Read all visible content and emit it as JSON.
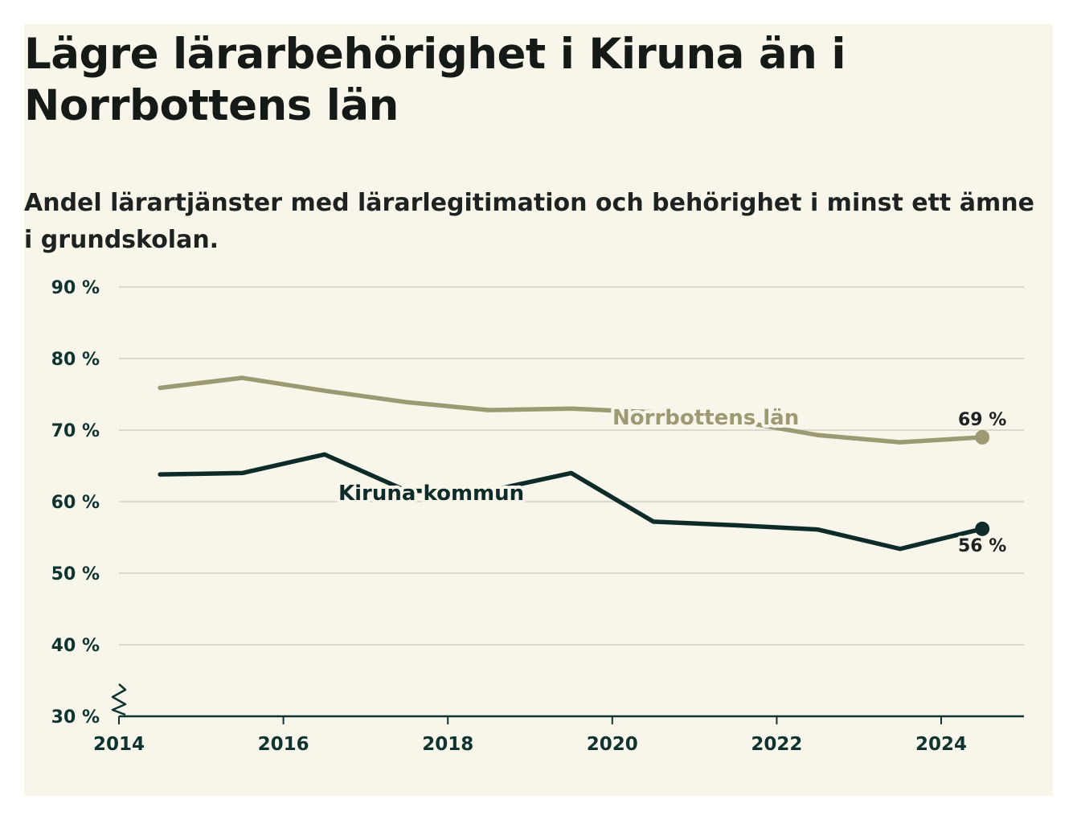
{
  "chart_data": {
    "type": "line",
    "title": "Lägre lärarbehörighet i Kiruna än i Norrbottens län",
    "subtitle": "Andel lärartjänster med lärarlegitimation och behörighet i minst ett ämne i grundskolan.",
    "xlabel": "",
    "ylabel": "",
    "xlim": [
      2014,
      2025
    ],
    "ylim": [
      30,
      90
    ],
    "y_ticks": [
      30,
      40,
      50,
      60,
      70,
      80,
      90
    ],
    "y_tick_labels": [
      "30 %",
      "40 %",
      "50 %",
      "60 %",
      "70 %",
      "80 %",
      "90 %"
    ],
    "x_ticks": [
      2014,
      2016,
      2018,
      2020,
      2022,
      2024
    ],
    "x_tick_labels": [
      "2014",
      "2016",
      "2018",
      "2020",
      "2022",
      "2024"
    ],
    "axis_break": true,
    "grid": true,
    "legend": "direct labels on lines",
    "series": [
      {
        "name": "Norrbottens län",
        "color": "#9c9a72",
        "x": [
          2014.5,
          2015.5,
          2016.5,
          2017.5,
          2018.5,
          2019.5,
          2020.5,
          2021.5,
          2022.5,
          2023.5,
          2024.5
        ],
        "values": [
          75.9,
          77.3,
          75.5,
          73.9,
          72.8,
          73.0,
          72.5,
          71.3,
          69.3,
          68.3,
          69.0
        ],
        "end_label": "69 %"
      },
      {
        "name": "Kiruna kommun",
        "color": "#0d2b28",
        "x": [
          2014.5,
          2015.5,
          2016.5,
          2017.5,
          2018.5,
          2019.5,
          2020.5,
          2021.5,
          2022.5,
          2023.5,
          2024.5
        ],
        "values": [
          63.8,
          64.0,
          66.6,
          61.5,
          61.5,
          64.0,
          57.2,
          56.7,
          56.1,
          53.4,
          56.2
        ],
        "end_label": "56 %"
      }
    ]
  }
}
